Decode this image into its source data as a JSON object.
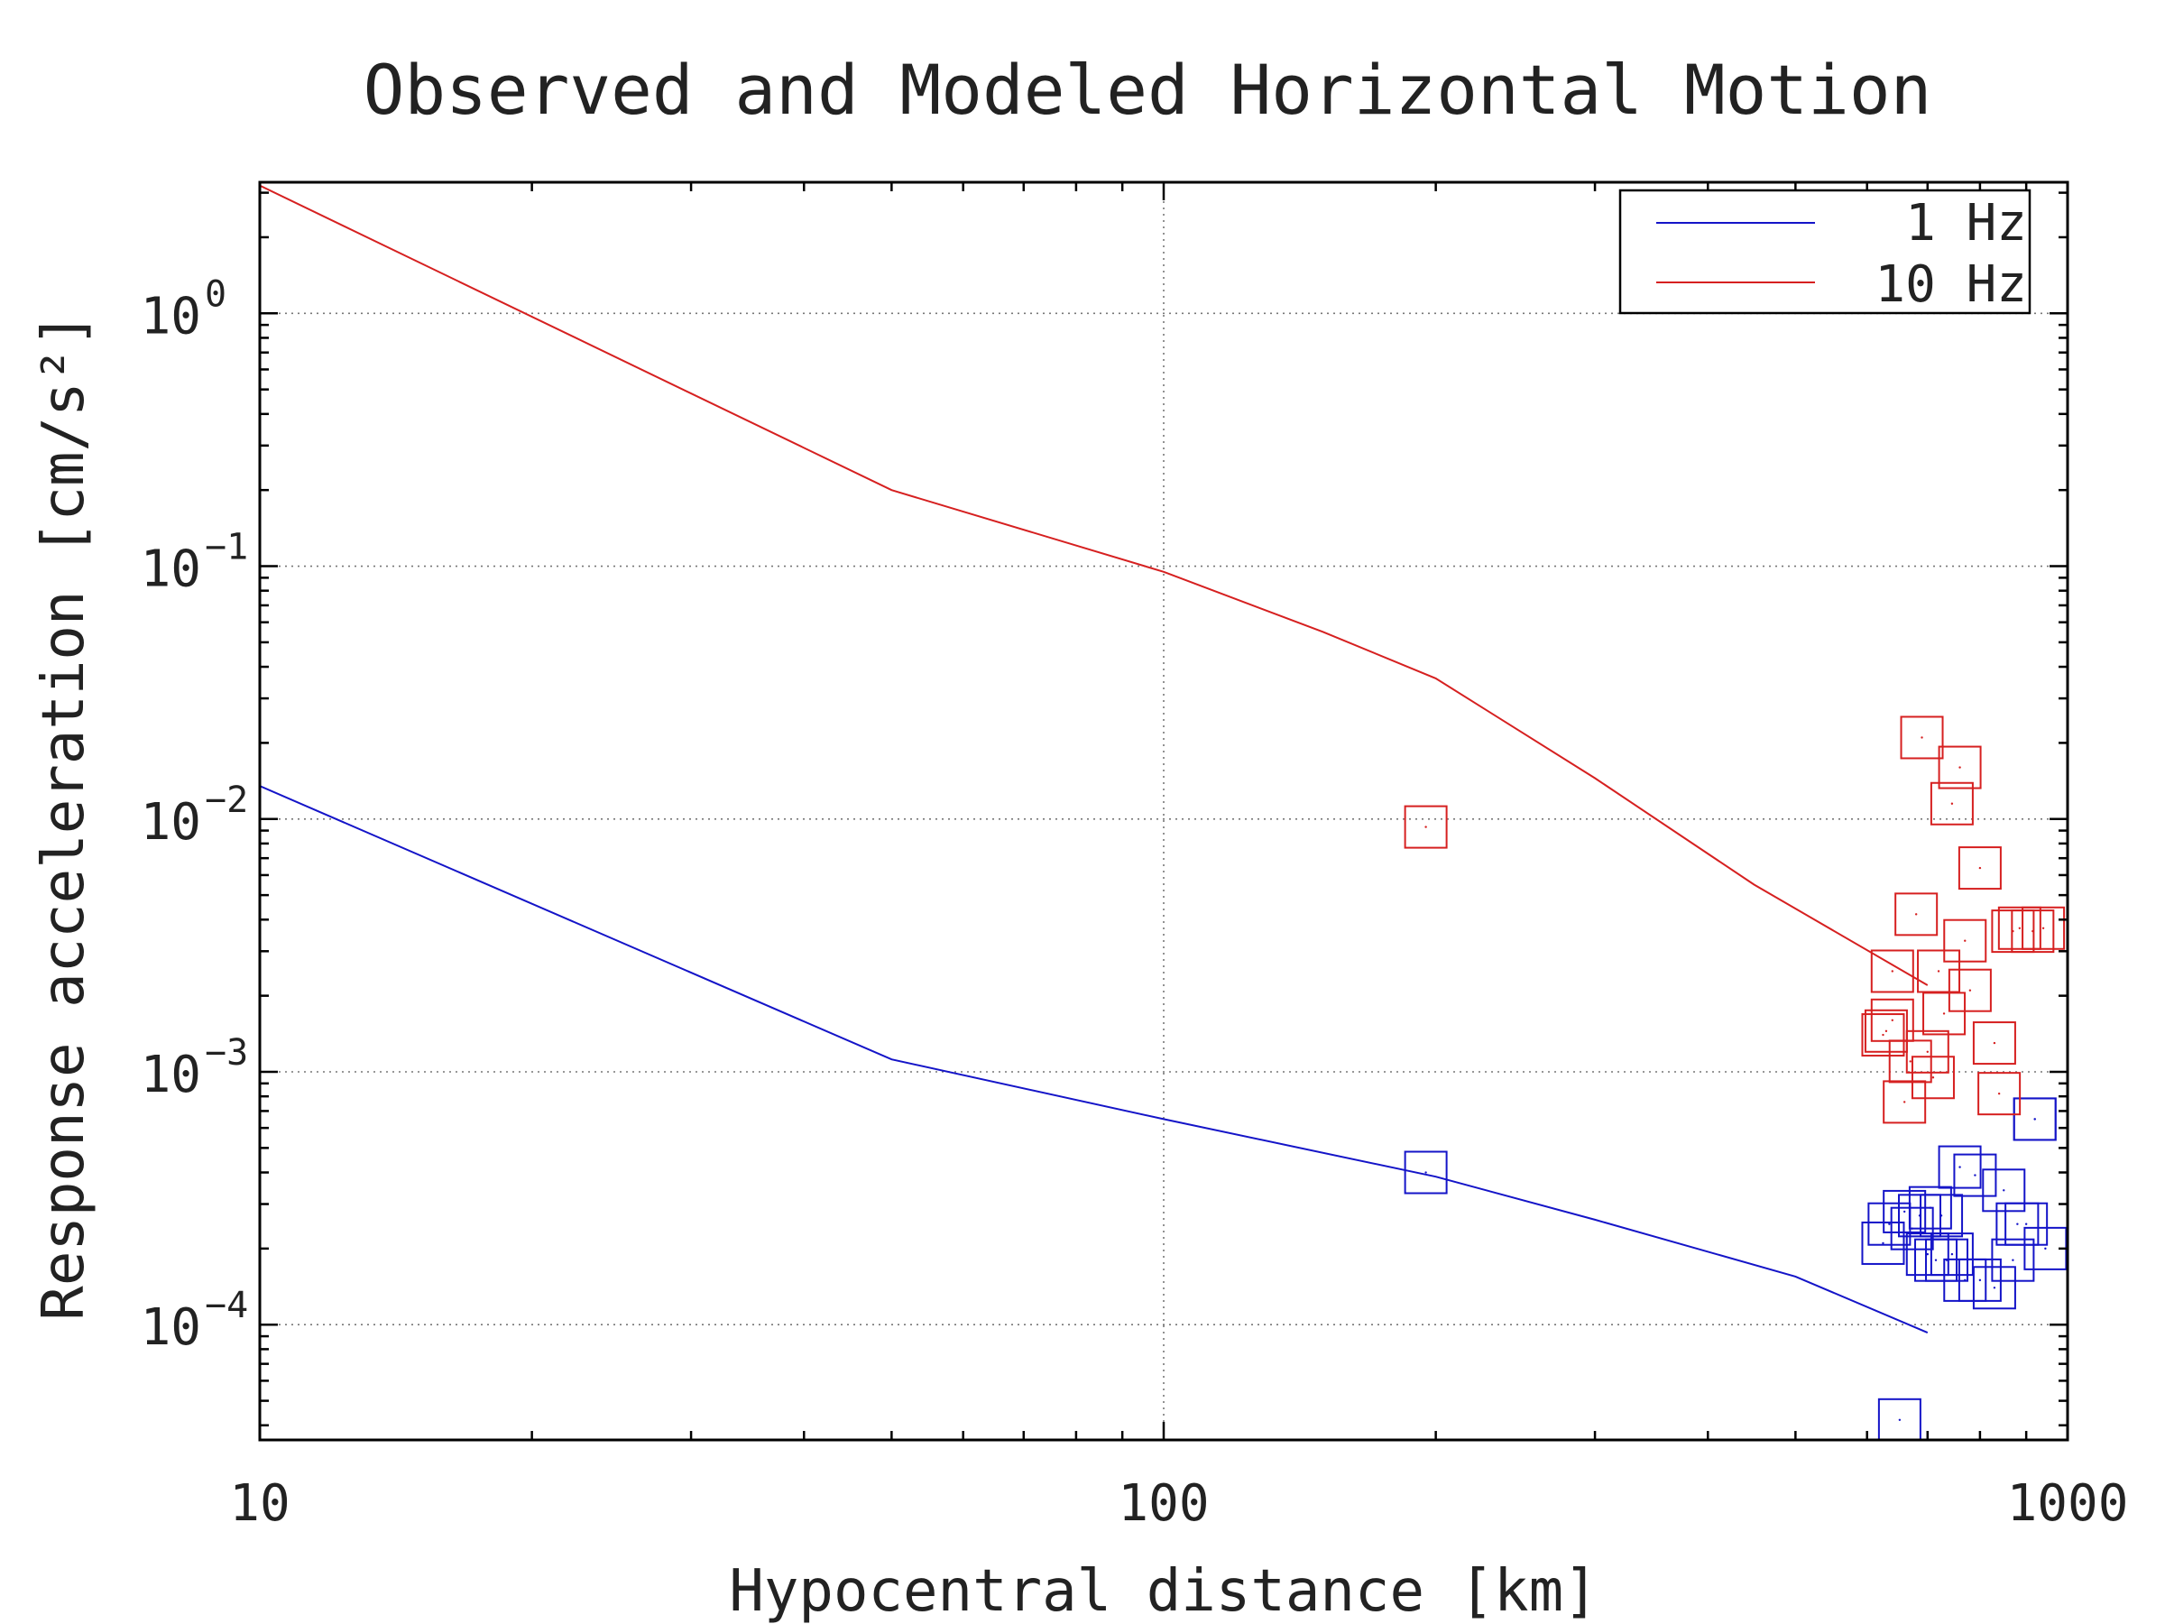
{
  "chart_data": {
    "type": "line",
    "title": "Observed and Modeled Horizontal Motion",
    "xlabel": "Hypocentral distance [km]",
    "ylabel": "Response acceleration [cm/s²]",
    "x_scale": "log",
    "y_scale": "log",
    "xlim": [
      10,
      1000
    ],
    "ylim": [
      3.5e-05,
      3.3
    ],
    "grid": "dotted, at major decades",
    "legend_position": "top-right",
    "x_ticks": [
      {
        "value": 10,
        "label": "10"
      },
      {
        "value": 100,
        "label": "100"
      },
      {
        "value": 1000,
        "label": "1000"
      }
    ],
    "y_ticks": [
      {
        "value": 1,
        "base": "10",
        "exp": "0"
      },
      {
        "value": 0.1,
        "base": "10",
        "exp": "−1"
      },
      {
        "value": 0.01,
        "base": "10",
        "exp": "−2"
      },
      {
        "value": 0.001,
        "base": "10",
        "exp": "−3"
      },
      {
        "value": 0.0001,
        "base": "10",
        "exp": "−4"
      }
    ],
    "series": [
      {
        "name": "1 Hz",
        "kind": "model-line",
        "color": "#1414c8",
        "x": [
          10,
          50,
          100,
          200,
          300,
          500,
          700
        ],
        "y": [
          0.0135,
          0.00112,
          0.00065,
          0.000385,
          0.00026,
          0.000155,
          9.3e-05
        ]
      },
      {
        "name": "10 Hz",
        "kind": "model-line",
        "color": "#d62020",
        "x": [
          10,
          50,
          100,
          150,
          200,
          300,
          450,
          700
        ],
        "y": [
          3.2,
          0.2,
          0.095,
          0.055,
          0.036,
          0.0145,
          0.0055,
          0.0022
        ]
      },
      {
        "name": "1 Hz",
        "kind": "observed-squares",
        "color": "#1414c8",
        "x": [
          195,
          652,
          625,
          635,
          660,
          673,
          686,
          700,
          705,
          715,
          725,
          735,
          745,
          760,
          770,
          790,
          800,
          830,
          850,
          870,
          880,
          900,
          920,
          945,
          920
        ],
        "y": [
          0.0004,
          4.2e-05,
          0.00021,
          0.00025,
          0.00028,
          0.00024,
          0.00027,
          0.00019,
          0.00029,
          0.00018,
          0.00027,
          0.00018,
          0.00019,
          0.00042,
          0.00015,
          0.00039,
          0.00015,
          0.00014,
          0.00034,
          0.00018,
          0.00025,
          0.00025,
          0.00065,
          0.0002,
          0.00065
        ]
      },
      {
        "name": "10 Hz",
        "kind": "observed-squares",
        "color": "#d62020",
        "x": [
          195,
          640,
          625,
          630,
          640,
          660,
          670,
          680,
          690,
          700,
          710,
          720,
          730,
          745,
          760,
          770,
          780,
          800,
          830,
          840,
          870,
          885,
          915,
          940
        ],
        "y": [
          0.0093,
          0.0025,
          0.0014,
          0.00145,
          0.0016,
          0.00076,
          0.0011,
          0.0042,
          0.021,
          0.0012,
          0.00095,
          0.0025,
          0.0017,
          0.0115,
          0.016,
          0.0033,
          0.0021,
          0.0064,
          0.0013,
          0.00082,
          0.0036,
          0.0037,
          0.0036,
          0.0037
        ]
      }
    ],
    "colors": {
      "blue": "#1414c8",
      "red": "#d62020",
      "axis": "#000000",
      "grid": "#777777"
    }
  }
}
